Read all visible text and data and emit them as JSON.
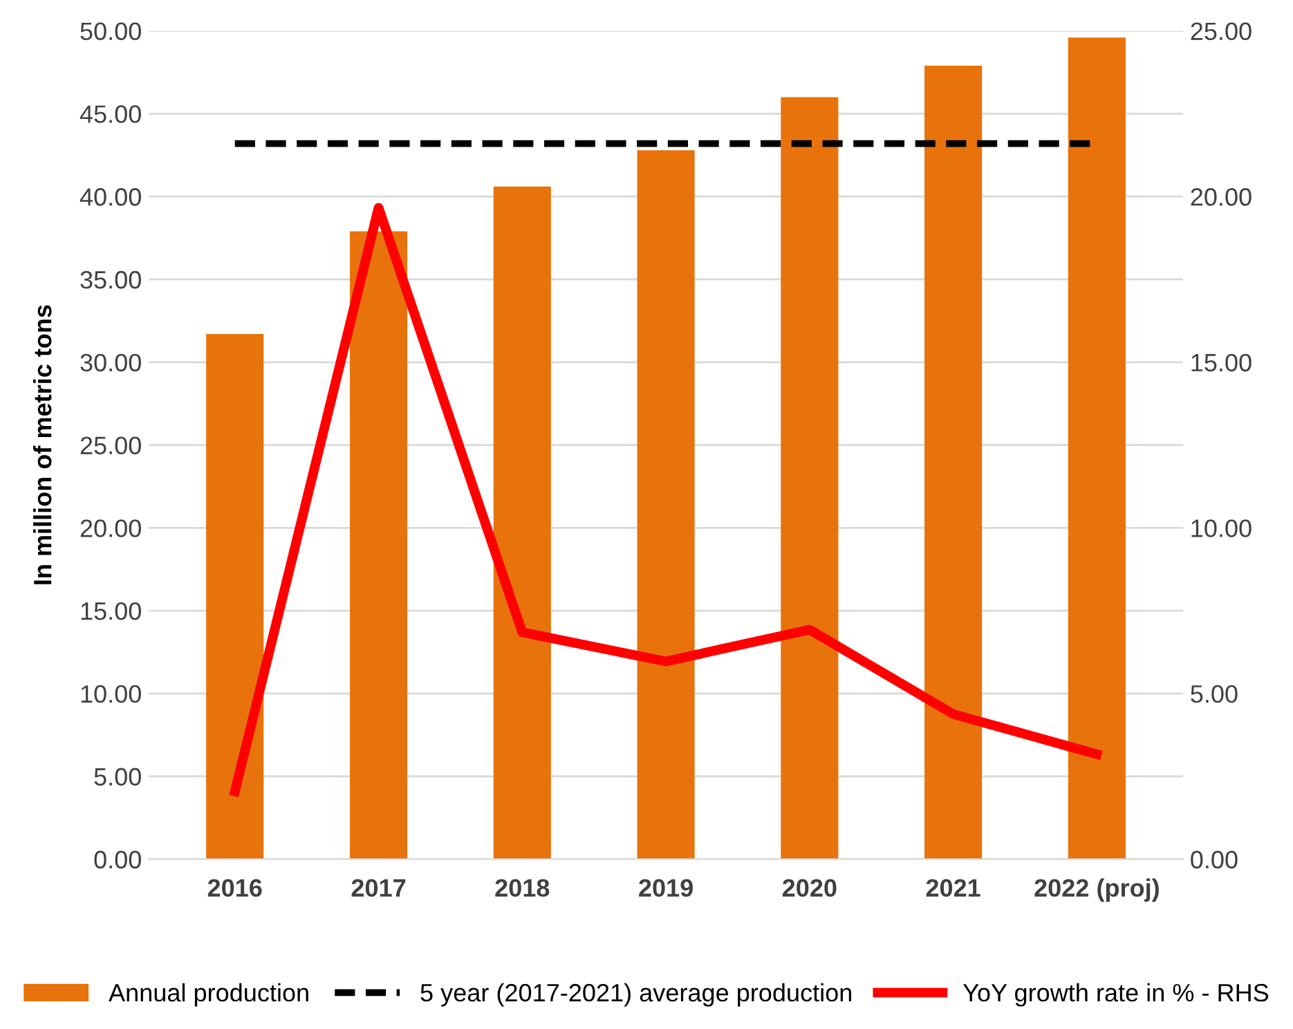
{
  "chart_data": {
    "type": "bar",
    "ylabel": "In million of metric tons",
    "categories": [
      "2016",
      "2017",
      "2018",
      "2019",
      "2020",
      "2021",
      "2022 (proj)"
    ],
    "series": [
      {
        "name": "Annual production",
        "color": "#e8730c",
        "values": [
          31.7,
          37.9,
          40.6,
          42.8,
          46.0,
          47.9,
          49.6
        ]
      },
      {
        "name": "5 year (2017-2021) average production",
        "type": "line",
        "color": "#000000",
        "line_style": "dashed",
        "values": [
          43.2,
          43.2,
          43.2,
          43.2,
          43.2,
          43.2,
          43.2
        ]
      },
      {
        "name": "YoY growth rate in % - RHS",
        "type": "line",
        "axis": "y2",
        "color": "#ff0000",
        "line_style": "solid",
        "values": [
          2.05,
          19.66,
          6.85,
          5.97,
          6.93,
          4.38,
          3.17
        ]
      }
    ],
    "ylim": [
      0,
      50
    ],
    "yticks": [
      {
        "value": 0,
        "label": "0.00"
      },
      {
        "value": 5,
        "label": "5.00"
      },
      {
        "value": 10,
        "label": "10.00"
      },
      {
        "value": 15,
        "label": "15.00"
      },
      {
        "value": 20,
        "label": "20.00"
      },
      {
        "value": 25,
        "label": "25.00"
      },
      {
        "value": 30,
        "label": "30.00"
      },
      {
        "value": 35,
        "label": "35.00"
      },
      {
        "value": 40,
        "label": "40.00"
      },
      {
        "value": 45,
        "label": "45.00"
      },
      {
        "value": 50,
        "label": "50.00"
      }
    ],
    "y2lim": [
      0,
      25
    ],
    "y2ticks": [
      {
        "value": 0,
        "label": "0.00"
      },
      {
        "value": 5,
        "label": "5.00"
      },
      {
        "value": 10,
        "label": "10.00"
      },
      {
        "value": 15,
        "label": "15.00"
      },
      {
        "value": 20,
        "label": "20.00"
      },
      {
        "value": 25,
        "label": "25.00"
      }
    ],
    "grid": "y",
    "legend": "bottom"
  }
}
